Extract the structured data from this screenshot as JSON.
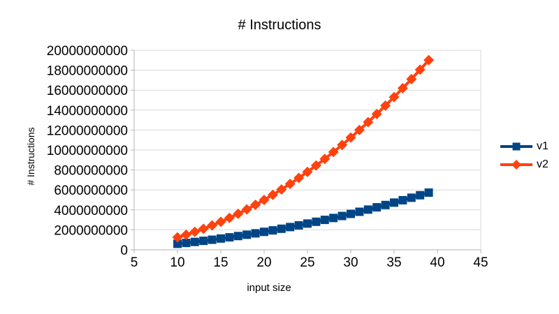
{
  "page": {
    "background": "#ffffff"
  },
  "colors": {
    "text": "#000000",
    "gridline": "#d9d9d9",
    "axis": "#b3b3b3",
    "series_v1": "#004586",
    "series_v2": "#ff420e"
  },
  "chart_data": {
    "type": "line",
    "title": "# Instructions",
    "xlabel": "input size",
    "ylabel": "# Instructions",
    "legend_position": "right",
    "grid": true,
    "xlim": [
      5,
      45
    ],
    "ylim": [
      0,
      20000000000
    ],
    "x_ticks": [
      5,
      10,
      15,
      20,
      25,
      30,
      35,
      40,
      45
    ],
    "y_ticks": [
      0,
      2000000000,
      4000000000,
      6000000000,
      8000000000,
      10000000000,
      12000000000,
      14000000000,
      16000000000,
      18000000000,
      20000000000
    ],
    "x": [
      10,
      11,
      12,
      13,
      14,
      15,
      16,
      17,
      18,
      19,
      20,
      21,
      22,
      23,
      24,
      25,
      26,
      27,
      28,
      29,
      30,
      31,
      32,
      33,
      34,
      35,
      36,
      37,
      38,
      39
    ],
    "series": [
      {
        "name": "v1",
        "color": "#004586",
        "marker": "square",
        "values": [
          600000000,
          690000000,
          790000000,
          900000000,
          1010000000,
          1130000000,
          1250000000,
          1380000000,
          1510000000,
          1650000000,
          1800000000,
          1950000000,
          2110000000,
          2280000000,
          2450000000,
          2630000000,
          2810000000,
          3000000000,
          3190000000,
          3390000000,
          3600000000,
          3810000000,
          4030000000,
          4260000000,
          4490000000,
          4730000000,
          4970000000,
          5220000000,
          5470000000,
          5730000000
        ]
      },
      {
        "name": "v2",
        "color": "#ff420e",
        "marker": "diamond",
        "values": [
          1250000000,
          1510000000,
          1800000000,
          2110000000,
          2450000000,
          2810000000,
          3200000000,
          3610000000,
          4050000000,
          4510000000,
          5000000000,
          5510000000,
          6050000000,
          6610000000,
          7200000000,
          7810000000,
          8450000000,
          9110000000,
          9800000000,
          10510000000,
          11250000000,
          12010000000,
          12800000000,
          13610000000,
          14450000000,
          15310000000,
          16200000000,
          17110000000,
          18050000000,
          19010000000
        ]
      }
    ]
  }
}
